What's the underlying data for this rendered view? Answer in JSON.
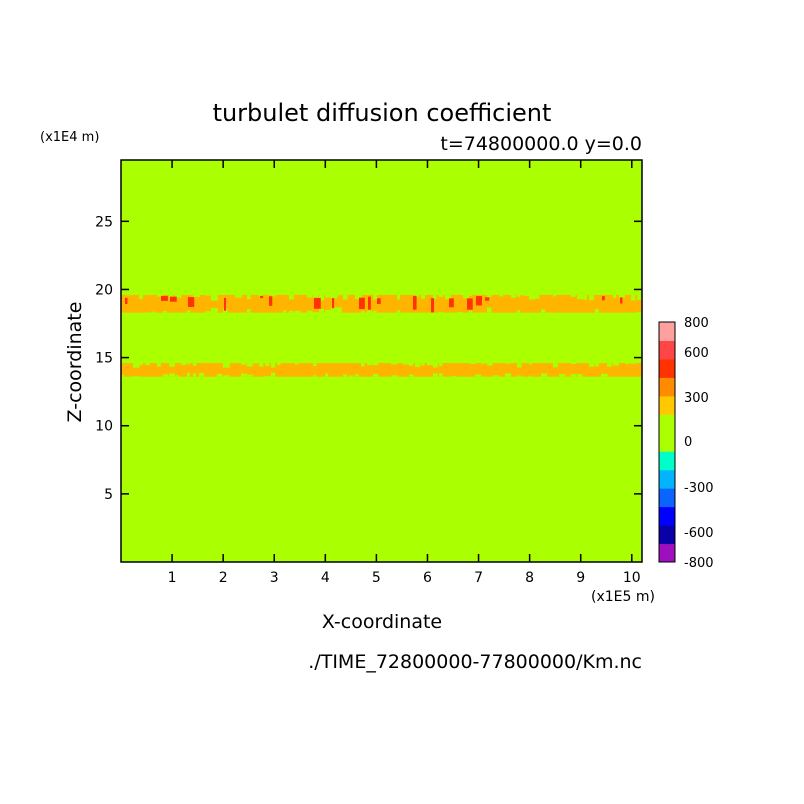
{
  "chart_data": {
    "type": "heatmap",
    "title": "turbulet diffusion coefficient",
    "subtitle": "t=74800000.0 y=0.0",
    "xlabel": "X-coordinate",
    "ylabel": "Z-coordinate",
    "x_unit": "(x1E5 m)",
    "y_unit": "(x1E4 m)",
    "xlim": [
      0,
      10.2
    ],
    "ylim": [
      0,
      29.5
    ],
    "x_ticks": [
      1,
      2,
      3,
      4,
      5,
      6,
      7,
      8,
      9,
      10
    ],
    "y_ticks": [
      5,
      10,
      15,
      20,
      25
    ],
    "background_level": "0 to 150",
    "bands": [
      {
        "z_min": 18.3,
        "z_max": 19.6,
        "level": "150 to 300",
        "color": "#ffb400"
      },
      {
        "z_min": 13.6,
        "z_max": 14.6,
        "level": "150 to 300",
        "color": "#ffb400"
      }
    ],
    "colorbar": {
      "colors": [
        "#9f0fbf",
        "#0a00a8",
        "#0000ff",
        "#0a64ff",
        "#00b4ff",
        "#00ffc8",
        "#aaff00",
        "#aaff00",
        "#ffc800",
        "#ff8c00",
        "#ff3200",
        "#ff4646",
        "#ffa0a0"
      ],
      "tick_labels": [
        "800",
        "600",
        "300",
        "0",
        "-300",
        "-600",
        "-800"
      ]
    },
    "grid": false,
    "legend": "colorbar-right"
  },
  "footer": {
    "source": "./TIME_72800000-77800000/Km.nc"
  }
}
